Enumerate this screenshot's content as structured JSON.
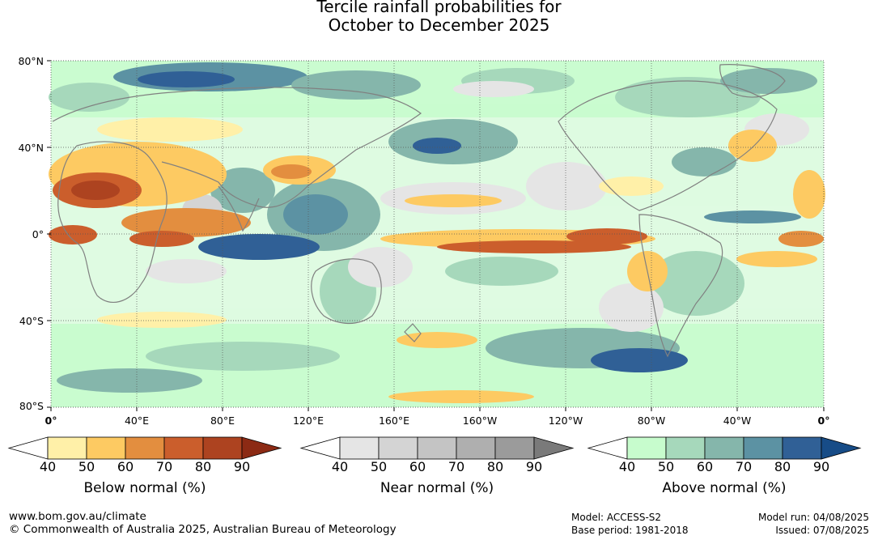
{
  "title": {
    "line1": "Tercile rainfall probabilities for",
    "line2": "October to December 2025"
  },
  "axes": {
    "lat_labels": [
      "80°N",
      "40°N",
      "0°",
      "40°S",
      "80°S"
    ],
    "lon_labels": [
      "0°",
      "40°E",
      "80°E",
      "120°E",
      "160°E",
      "160°W",
      "120°W",
      "80°W",
      "40°W",
      "0°"
    ]
  },
  "legends": [
    {
      "id": "below",
      "title": "Below normal (%)",
      "ticks": [
        "40",
        "50",
        "60",
        "70",
        "80",
        "90"
      ],
      "colors": [
        "#fff0a8",
        "#fdca62",
        "#e38e3f",
        "#cb5e2c",
        "#ad4320",
        "#8c2a14"
      ]
    },
    {
      "id": "near",
      "title": "Near normal (%)",
      "ticks": [
        "40",
        "50",
        "60",
        "70",
        "80",
        "90"
      ],
      "colors": [
        "#e5e5e5",
        "#d4d4d4",
        "#c4c4c4",
        "#afafaf",
        "#9b9b9b",
        "#7a7a7a"
      ]
    },
    {
      "id": "above",
      "title": "Above normal (%)",
      "ticks": [
        "40",
        "50",
        "60",
        "70",
        "80",
        "90"
      ],
      "colors": [
        "#c7fccd",
        "#a6d8bb",
        "#85b6ab",
        "#5c92a3",
        "#306096",
        "#174c87"
      ]
    }
  ],
  "footer": {
    "website": "www.bom.gov.au/climate",
    "copyright": "© Commonwealth of Australia 2025, Australian Bureau of Meteorology",
    "model": "Model: ACCESS-S2",
    "base_period": "Base period: 1981-2018",
    "model_run": "Model run: 04/08/2025",
    "issued": "Issued: 07/08/2025"
  }
}
